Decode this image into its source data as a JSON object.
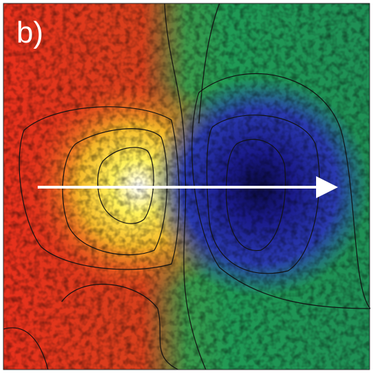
{
  "panel": {
    "label": "b)"
  }
}
